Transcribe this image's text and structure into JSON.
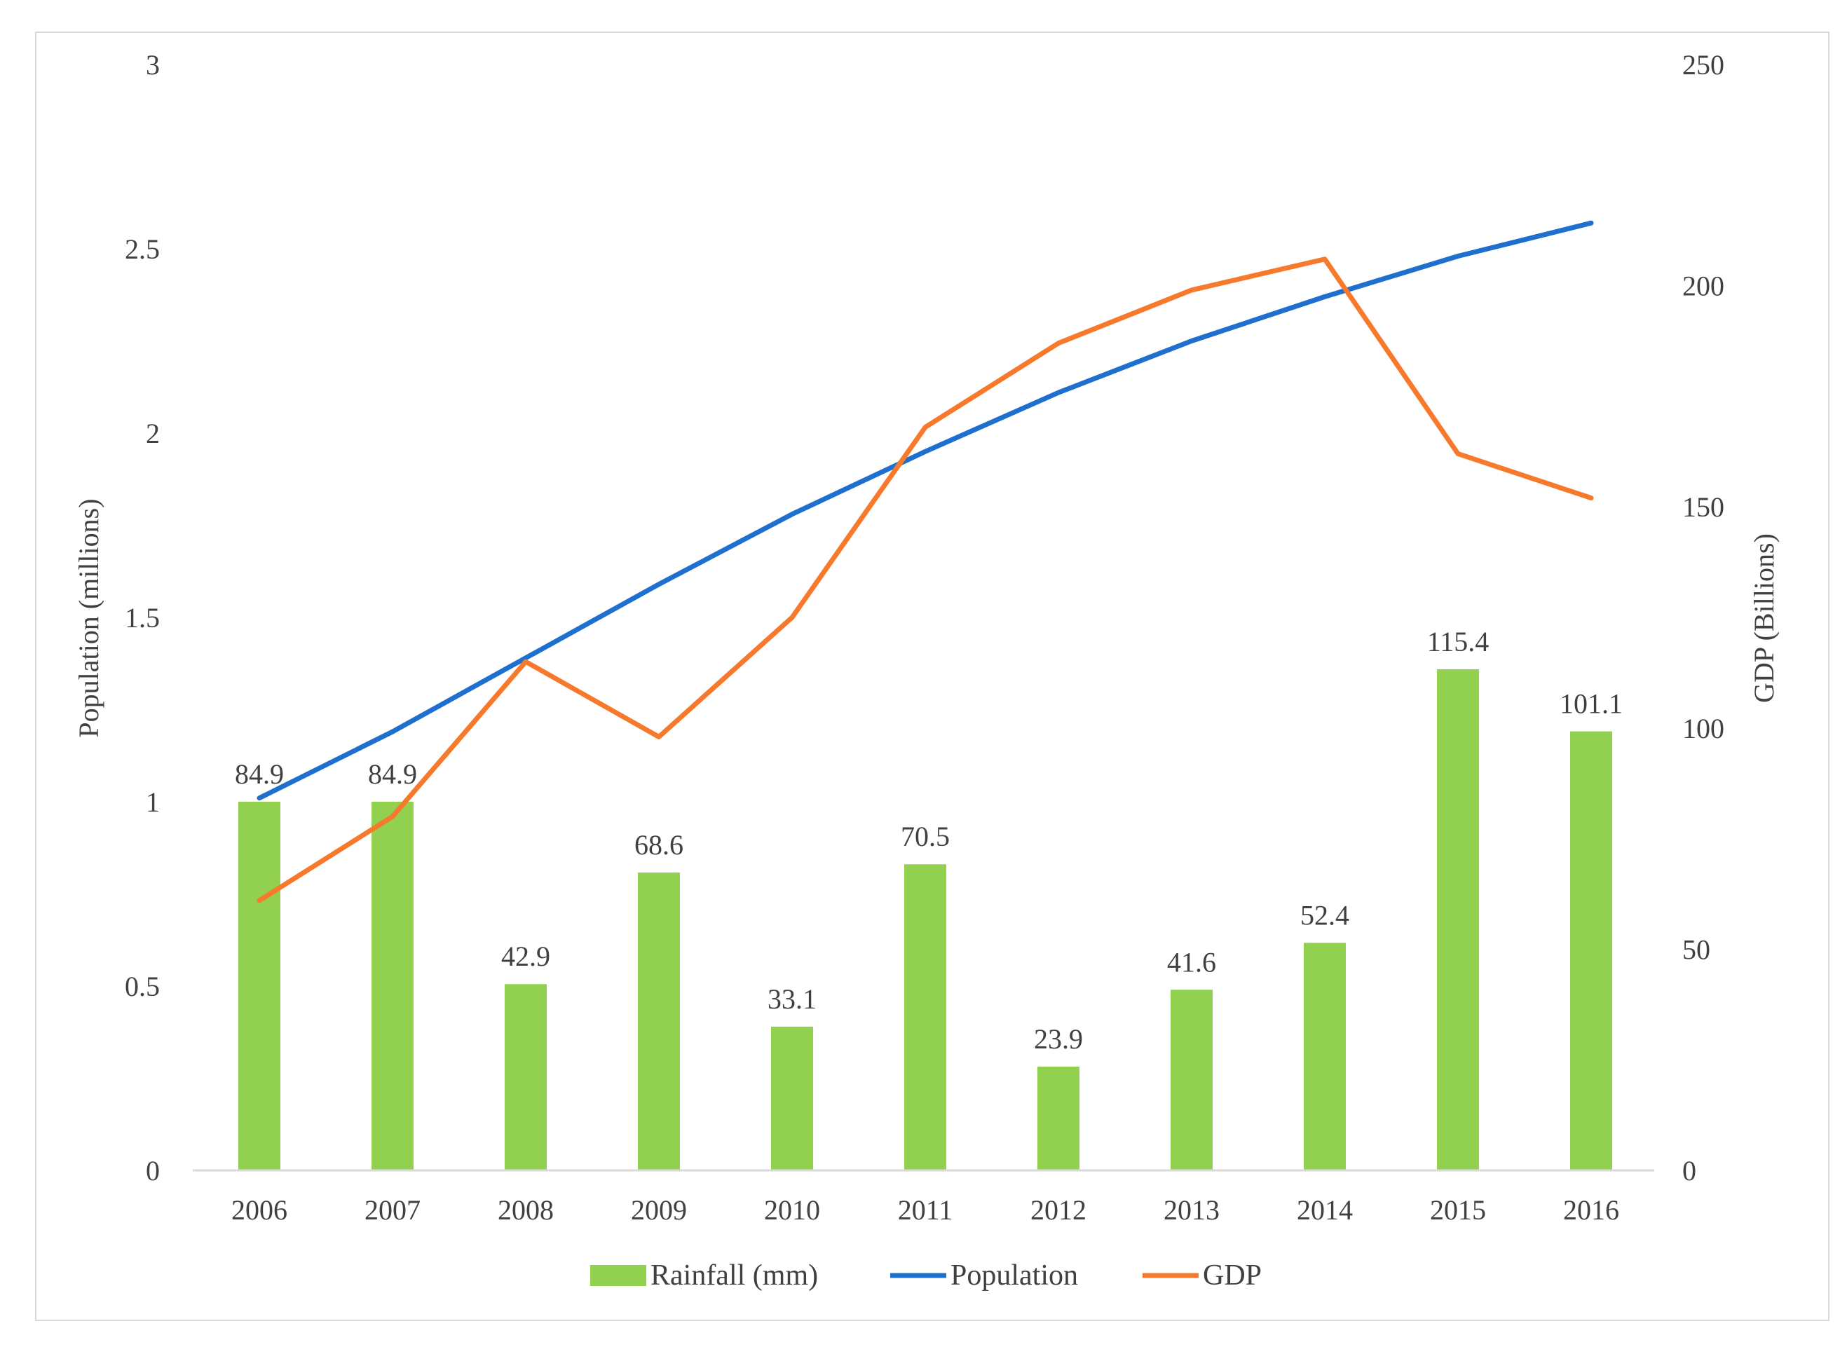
{
  "chart_data": {
    "type": "bar+line",
    "categories": [
      "2006",
      "2007",
      "2008",
      "2009",
      "2010",
      "2011",
      "2012",
      "2013",
      "2014",
      "2015",
      "2016"
    ],
    "series": [
      {
        "name": "Rainfall (mm)",
        "kind": "bar",
        "axis": "left",
        "color": "#92d050",
        "values": [
          84.9,
          84.9,
          42.9,
          68.6,
          33.1,
          70.5,
          23.9,
          41.6,
          52.4,
          115.4,
          101.1
        ],
        "labels": [
          "84.9",
          "84.9",
          "42.9",
          "68.6",
          "33.1",
          "70.5",
          "23.9",
          "41.6",
          "52.4",
          "115.4",
          "101.1"
        ]
      },
      {
        "name": "Population",
        "kind": "line",
        "axis": "left",
        "color": "#1f6fce",
        "values": [
          1.01,
          1.19,
          1.39,
          1.59,
          1.78,
          1.95,
          2.11,
          2.25,
          2.37,
          2.48,
          2.57
        ]
      },
      {
        "name": "GDP",
        "kind": "line",
        "axis": "right",
        "color": "#f7792b",
        "values": [
          61,
          80,
          115,
          98,
          125,
          168,
          187,
          199,
          206,
          162,
          152
        ]
      }
    ],
    "bar_scale_note": "Bar heights are plotted so that 84.9 reaches the 1.0 level of the left axis",
    "bar_unit_per_left_axis": 84.9,
    "y_left": {
      "label": "Population (millions)",
      "ticks": [
        "0",
        "0.5",
        "1",
        "1.5",
        "2",
        "2.5",
        "3"
      ],
      "range": [
        0,
        3
      ]
    },
    "y_right": {
      "label": "GDP (Billions)",
      "ticks": [
        "0",
        "50",
        "100",
        "150",
        "200",
        "250"
      ],
      "range": [
        0,
        250
      ]
    },
    "legend": {
      "position": "bottom",
      "items": [
        "Rainfall (mm)",
        "Population",
        "GDP"
      ]
    },
    "grid": false
  }
}
